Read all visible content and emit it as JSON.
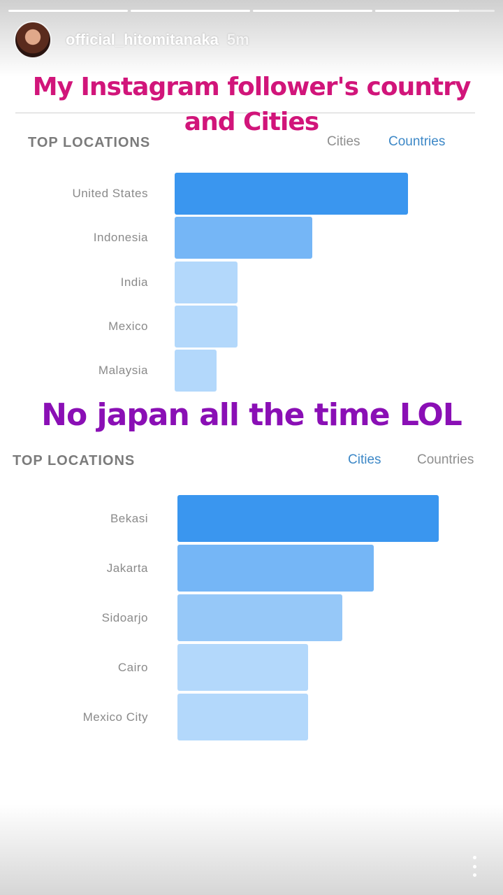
{
  "story": {
    "progress": [
      1,
      1,
      1,
      0.7
    ],
    "username": "official_hitomitanaka",
    "time_ago": "5m"
  },
  "captions": {
    "line1": "My Instagram follower's country",
    "line2": "and Cities",
    "line3": "No japan all the time LOL"
  },
  "countries_panel": {
    "title": "TOP LOCATIONS",
    "tabs": [
      {
        "label": "Cities",
        "active": false
      },
      {
        "label": "Countries",
        "active": true
      }
    ]
  },
  "cities_panel": {
    "title": "TOP LOCATIONS",
    "tabs": [
      {
        "label": "Cities",
        "active": true
      },
      {
        "label": "Countries",
        "active": false
      }
    ]
  },
  "colors": {
    "bar_shades": [
      "#3a96ef",
      "#75b6f6",
      "#96c8f8",
      "#b3d8fb"
    ],
    "accent_tab": "#3d88c7",
    "caption_pink": "#d1157a",
    "caption_purple": "#8a0fb5"
  },
  "chart_data": [
    {
      "type": "bar",
      "orientation": "horizontal",
      "title": "TOP LOCATIONS",
      "categories": [
        "United States",
        "Indonesia",
        "India",
        "Mexico",
        "Malaysia"
      ],
      "values": [
        100,
        59,
        27,
        27,
        18
      ],
      "xlim": [
        0,
        100
      ]
    },
    {
      "type": "bar",
      "orientation": "horizontal",
      "title": "TOP LOCATIONS",
      "categories": [
        "Bekasi",
        "Jakarta",
        "Sidoarjo",
        "Cairo",
        "Mexico City"
      ],
      "values": [
        100,
        75,
        63,
        50,
        50
      ],
      "xlim": [
        0,
        100
      ]
    }
  ]
}
